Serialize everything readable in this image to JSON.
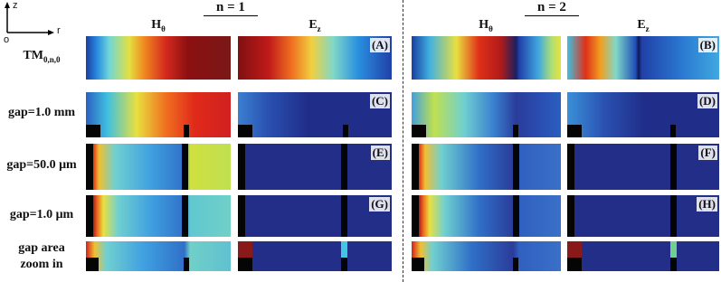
{
  "axes": {
    "z": "z",
    "origin": "o",
    "r": "r"
  },
  "groups": [
    {
      "label": "n = 1"
    },
    {
      "label": "n = 2"
    }
  ],
  "columns": [
    {
      "main": "H",
      "sub": "θ"
    },
    {
      "main": "E",
      "sub": "z"
    },
    {
      "main": "H",
      "sub": "θ"
    },
    {
      "main": "E",
      "sub": "z"
    }
  ],
  "rows": [
    {
      "main": "TM",
      "sub": "0,n,0"
    },
    {
      "main": "gap=1.0 mm"
    },
    {
      "main": "gap=50.0 μm"
    },
    {
      "main": "gap=1.0 μm"
    },
    {
      "main": "gap area",
      "line2": "zoom in"
    }
  ],
  "panel_labels": [
    "(A)",
    "(B)",
    "(C)",
    "(D)",
    "(E)",
    "(F)",
    "(G)",
    "(H)"
  ]
}
